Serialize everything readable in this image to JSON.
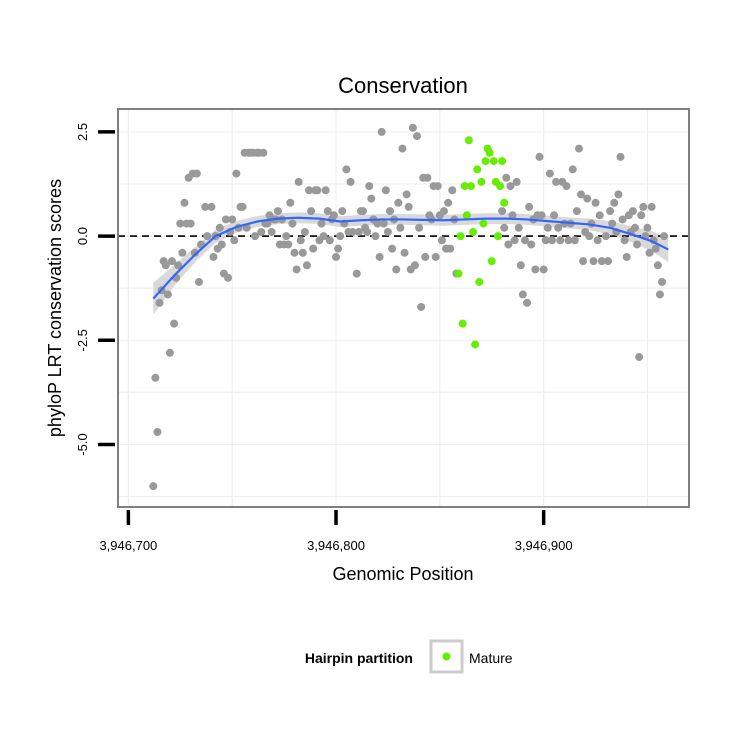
{
  "chart_data": {
    "type": "scatter",
    "title": "Conservation",
    "xlabel": "Genomic Position",
    "ylabel": "phyloP LRT conservation scores",
    "xlim": [
      3946695,
      3946970
    ],
    "ylim": [
      -6.5,
      3.05
    ],
    "x_ticks": [
      3946700,
      3946800,
      3946900
    ],
    "x_tick_labels": [
      "3,946,700",
      "3,946,800",
      "3,946,900"
    ],
    "y_ticks": [
      -5,
      -2.5,
      0,
      2.5
    ],
    "y_tick_labels": [
      "-5.0",
      "-2.5",
      "0.0",
      "2.5"
    ],
    "grid": true,
    "reference_line": {
      "y": 0,
      "style": "dashed"
    },
    "colors": {
      "other_points": "#999999",
      "mature_points": "#66ee00",
      "smooth_line": "#3366ff",
      "ribbon": "#cccccc",
      "panel_border": "#7f7f7f",
      "grid": "#efefef"
    },
    "legend": {
      "title": "Hairpin partition",
      "position": "bottom",
      "entries": [
        {
          "label": "Mature",
          "color": "#66ee00"
        }
      ]
    },
    "series": [
      {
        "role": "other",
        "points": [
          [
            3946712,
            -6
          ],
          [
            3946713,
            -3.4
          ],
          [
            3946714,
            -4.7
          ],
          [
            3946715,
            -1.6
          ],
          [
            3946716,
            -1.3
          ],
          [
            3946717,
            -0.6
          ],
          [
            3946718,
            -0.7
          ],
          [
            3946719,
            -1.4
          ],
          [
            3946720,
            -2.8
          ],
          [
            3946721,
            -0.6
          ],
          [
            3946722,
            -2.1
          ],
          [
            3946723,
            -1
          ],
          [
            3946724,
            -0.7
          ],
          [
            3946725,
            0.3
          ],
          [
            3946726,
            -0.4
          ],
          [
            3946727,
            0.8
          ],
          [
            3946728,
            0.3
          ],
          [
            3946729,
            1.4
          ],
          [
            3946730,
            0.3
          ],
          [
            3946731,
            1.5
          ],
          [
            3946732,
            -0.4
          ],
          [
            3946733,
            1.5
          ],
          [
            3946734,
            -1.1
          ],
          [
            3946735,
            -0.2
          ],
          [
            3946737,
            0.7
          ],
          [
            3946738,
            0
          ],
          [
            3946740,
            0.7
          ],
          [
            3946741,
            -0.5
          ],
          [
            3946742,
            0
          ],
          [
            3946743,
            -0.3
          ],
          [
            3946744,
            0.2
          ],
          [
            3946745,
            -0.2
          ],
          [
            3946746,
            -0.9
          ],
          [
            3946747,
            0.4
          ],
          [
            3946748,
            -1
          ],
          [
            3946749,
            0.1
          ],
          [
            3946750,
            0.4
          ],
          [
            3946751,
            -0.1
          ],
          [
            3946752,
            1.5
          ],
          [
            3946753,
            0.2
          ],
          [
            3946754,
            0.7
          ],
          [
            3946755,
            0.7
          ],
          [
            3946756,
            2
          ],
          [
            3946757,
            0.2
          ],
          [
            3946758,
            2
          ],
          [
            3946759,
            2
          ],
          [
            3946760,
            2
          ],
          [
            3946761,
            0
          ],
          [
            3946762,
            2
          ],
          [
            3946763,
            2
          ],
          [
            3946764,
            0.1
          ],
          [
            3946765,
            2
          ],
          [
            3946766,
            0.3
          ],
          [
            3946767,
            0.3
          ],
          [
            3946768,
            0.5
          ],
          [
            3946769,
            0.1
          ],
          [
            3946770,
            0.4
          ],
          [
            3946771,
            0.4
          ],
          [
            3946772,
            0.6
          ],
          [
            3946773,
            -0.2
          ],
          [
            3946774,
            0.4
          ],
          [
            3946775,
            -0.2
          ],
          [
            3946776,
            0
          ],
          [
            3946777,
            -0.2
          ],
          [
            3946778,
            0.8
          ],
          [
            3946779,
            0.3
          ],
          [
            3946780,
            -0.4
          ],
          [
            3946781,
            -0.8
          ],
          [
            3946782,
            1.3
          ],
          [
            3946783,
            -0.1
          ],
          [
            3946784,
            -0.4
          ],
          [
            3946785,
            0.1
          ],
          [
            3946786,
            -0.7
          ],
          [
            3946787,
            1.1
          ],
          [
            3946788,
            0.6
          ],
          [
            3946789,
            -0.3
          ],
          [
            3946790,
            1.1
          ],
          [
            3946791,
            1.1
          ],
          [
            3946792,
            -0.1
          ],
          [
            3946793,
            0.3
          ],
          [
            3946794,
            0
          ],
          [
            3946795,
            1.1
          ],
          [
            3946796,
            0.6
          ],
          [
            3946797,
            -0.1
          ],
          [
            3946798,
            0.4
          ],
          [
            3946799,
            0.5
          ],
          [
            3946800,
            -0.5
          ],
          [
            3946801,
            -0.3
          ],
          [
            3946802,
            0
          ],
          [
            3946803,
            0.6
          ],
          [
            3946804,
            0.3
          ],
          [
            3946805,
            1.6
          ],
          [
            3946806,
            0.1
          ],
          [
            3946807,
            1.3
          ],
          [
            3946808,
            0.1
          ],
          [
            3946810,
            -0.9
          ],
          [
            3946811,
            0.1
          ],
          [
            3946812,
            0.6
          ],
          [
            3946813,
            0.6
          ],
          [
            3946814,
            0.2
          ],
          [
            3946815,
            0.1
          ],
          [
            3946816,
            1.2
          ],
          [
            3946817,
            0.9
          ],
          [
            3946818,
            0.4
          ],
          [
            3946819,
            0
          ],
          [
            3946820,
            0.3
          ],
          [
            3946821,
            -0.5
          ],
          [
            3946822,
            2.5
          ],
          [
            3946823,
            0.3
          ],
          [
            3946824,
            1.1
          ],
          [
            3946825,
            0.1
          ],
          [
            3946826,
            0.6
          ],
          [
            3946827,
            -0.3
          ],
          [
            3946828,
            0.4
          ],
          [
            3946829,
            -0.8
          ],
          [
            3946830,
            0.8
          ],
          [
            3946831,
            0.2
          ],
          [
            3946832,
            2.1
          ],
          [
            3946833,
            -0.4
          ],
          [
            3946834,
            1
          ],
          [
            3946835,
            0.7
          ],
          [
            3946836,
            -0.8
          ],
          [
            3946837,
            2.6
          ],
          [
            3946838,
            -0.7
          ],
          [
            3946839,
            2.4
          ],
          [
            3946840,
            0.2
          ],
          [
            3946841,
            -1.7
          ],
          [
            3946842,
            1.4
          ],
          [
            3946843,
            -0.5
          ],
          [
            3946844,
            1.4
          ],
          [
            3946845,
            0.5
          ],
          [
            3946846,
            0.4
          ],
          [
            3946847,
            1.2
          ],
          [
            3946848,
            -0.5
          ],
          [
            3946849,
            1.2
          ],
          [
            3946850,
            0.5
          ],
          [
            3946851,
            -0.1
          ],
          [
            3946852,
            0.6
          ],
          [
            3946853,
            -0.3
          ],
          [
            3946854,
            0.8
          ],
          [
            3946855,
            -0.3
          ],
          [
            3946856,
            1.1
          ],
          [
            3946857,
            0.4
          ],
          [
            3946858,
            -0.9
          ],
          [
            3946880,
            0.6
          ],
          [
            3946881,
            0.2
          ],
          [
            3946882,
            1.4
          ],
          [
            3946883,
            -0.2
          ],
          [
            3946884,
            1.2
          ],
          [
            3946885,
            0.5
          ],
          [
            3946886,
            -0.1
          ],
          [
            3946887,
            1.3
          ],
          [
            3946888,
            0.2
          ],
          [
            3946889,
            -0.7
          ],
          [
            3946890,
            -1.4
          ],
          [
            3946891,
            -0.1
          ],
          [
            3946892,
            -1.6
          ],
          [
            3946893,
            0.7
          ],
          [
            3946894,
            -0.2
          ],
          [
            3946895,
            0.4
          ],
          [
            3946896,
            -0.8
          ],
          [
            3946897,
            0.5
          ],
          [
            3946898,
            1.9
          ],
          [
            3946899,
            0.5
          ],
          [
            3946900,
            -0.8
          ],
          [
            3946901,
            -0.1
          ],
          [
            3946902,
            0.2
          ],
          [
            3946903,
            1.5
          ],
          [
            3946904,
            -0.1
          ],
          [
            3946905,
            0.5
          ],
          [
            3946906,
            1.3
          ],
          [
            3946907,
            0.2
          ],
          [
            3946908,
            -0.1
          ],
          [
            3946909,
            1.3
          ],
          [
            3946910,
            0.3
          ],
          [
            3946911,
            1.2
          ],
          [
            3946912,
            -0.1
          ],
          [
            3946913,
            0.3
          ],
          [
            3946914,
            1.6
          ],
          [
            3946915,
            -0.1
          ],
          [
            3946916,
            0.6
          ],
          [
            3946917,
            2.1
          ],
          [
            3946918,
            1
          ],
          [
            3946919,
            -0.6
          ],
          [
            3946920,
            0.1
          ],
          [
            3946921,
            0.9
          ],
          [
            3946922,
            0
          ],
          [
            3946923,
            0.3
          ],
          [
            3946924,
            -0.6
          ],
          [
            3946925,
            0.8
          ],
          [
            3946926,
            -0.1
          ],
          [
            3946927,
            0.5
          ],
          [
            3946928,
            -0.6
          ],
          [
            3946930,
            0
          ],
          [
            3946931,
            -0.6
          ],
          [
            3946932,
            0.6
          ],
          [
            3946933,
            0.3
          ],
          [
            3946934,
            0.8
          ],
          [
            3946935,
            0.1
          ],
          [
            3946936,
            1
          ],
          [
            3946937,
            1.9
          ],
          [
            3946938,
            0.4
          ],
          [
            3946939,
            -0.1
          ],
          [
            3946940,
            -0.5
          ],
          [
            3946941,
            0.5
          ],
          [
            3946942,
            0.1
          ],
          [
            3946943,
            0.6
          ],
          [
            3946944,
            0.2
          ],
          [
            3946945,
            -0.2
          ],
          [
            3946946,
            -2.9
          ],
          [
            3946947,
            0.5
          ],
          [
            3946948,
            0.7
          ],
          [
            3946949,
            0
          ],
          [
            3946950,
            0.2
          ],
          [
            3946951,
            -0.4
          ],
          [
            3946952,
            0.7
          ],
          [
            3946953,
            -0.1
          ],
          [
            3946954,
            -0.3
          ],
          [
            3946955,
            -0.7
          ],
          [
            3946956,
            -1.4
          ],
          [
            3946957,
            -1.1
          ],
          [
            3946958,
            0
          ]
        ]
      },
      {
        "role": "mature",
        "name": "Mature",
        "points": [
          [
            3946859,
            -0.9
          ],
          [
            3946860,
            0
          ],
          [
            3946861,
            -2.1
          ],
          [
            3946862,
            1.2
          ],
          [
            3946863,
            0.5
          ],
          [
            3946864,
            2.3
          ],
          [
            3946865,
            1.2
          ],
          [
            3946866,
            0.1
          ],
          [
            3946867,
            -2.6
          ],
          [
            3946868,
            1.6
          ],
          [
            3946869,
            -1.1
          ],
          [
            3946870,
            1.3
          ],
          [
            3946871,
            0.3
          ],
          [
            3946872,
            1.8
          ],
          [
            3946873,
            2.1
          ],
          [
            3946874,
            2
          ],
          [
            3946875,
            -0.6
          ],
          [
            3946876,
            1.8
          ],
          [
            3946877,
            1.3
          ],
          [
            3946878,
            0
          ],
          [
            3946879,
            1.2
          ],
          [
            3946880,
            1.8
          ],
          [
            3946881,
            0.8
          ]
        ]
      }
    ],
    "smooth": {
      "x": [
        3946712,
        3946722,
        3946732,
        3946742,
        3946752,
        3946762,
        3946772,
        3946782,
        3946792,
        3946802,
        3946812,
        3946822,
        3946832,
        3946842,
        3946852,
        3946862,
        3946872,
        3946882,
        3946892,
        3946902,
        3946912,
        3946922,
        3946932,
        3946942,
        3946952,
        3946960
      ],
      "y": [
        -1.5,
        -0.95,
        -0.45,
        0,
        0.22,
        0.35,
        0.42,
        0.44,
        0.42,
        0.35,
        0.38,
        0.4,
        0.4,
        0.39,
        0.38,
        0.4,
        0.42,
        0.42,
        0.4,
        0.36,
        0.32,
        0.28,
        0.2,
        0.05,
        -0.12,
        -0.32
      ],
      "ribbon_half_width": [
        0.38,
        0.25,
        0.18,
        0.16,
        0.14,
        0.13,
        0.13,
        0.13,
        0.13,
        0.13,
        0.13,
        0.13,
        0.13,
        0.13,
        0.13,
        0.13,
        0.13,
        0.13,
        0.13,
        0.13,
        0.13,
        0.14,
        0.16,
        0.19,
        0.24,
        0.3
      ]
    }
  }
}
